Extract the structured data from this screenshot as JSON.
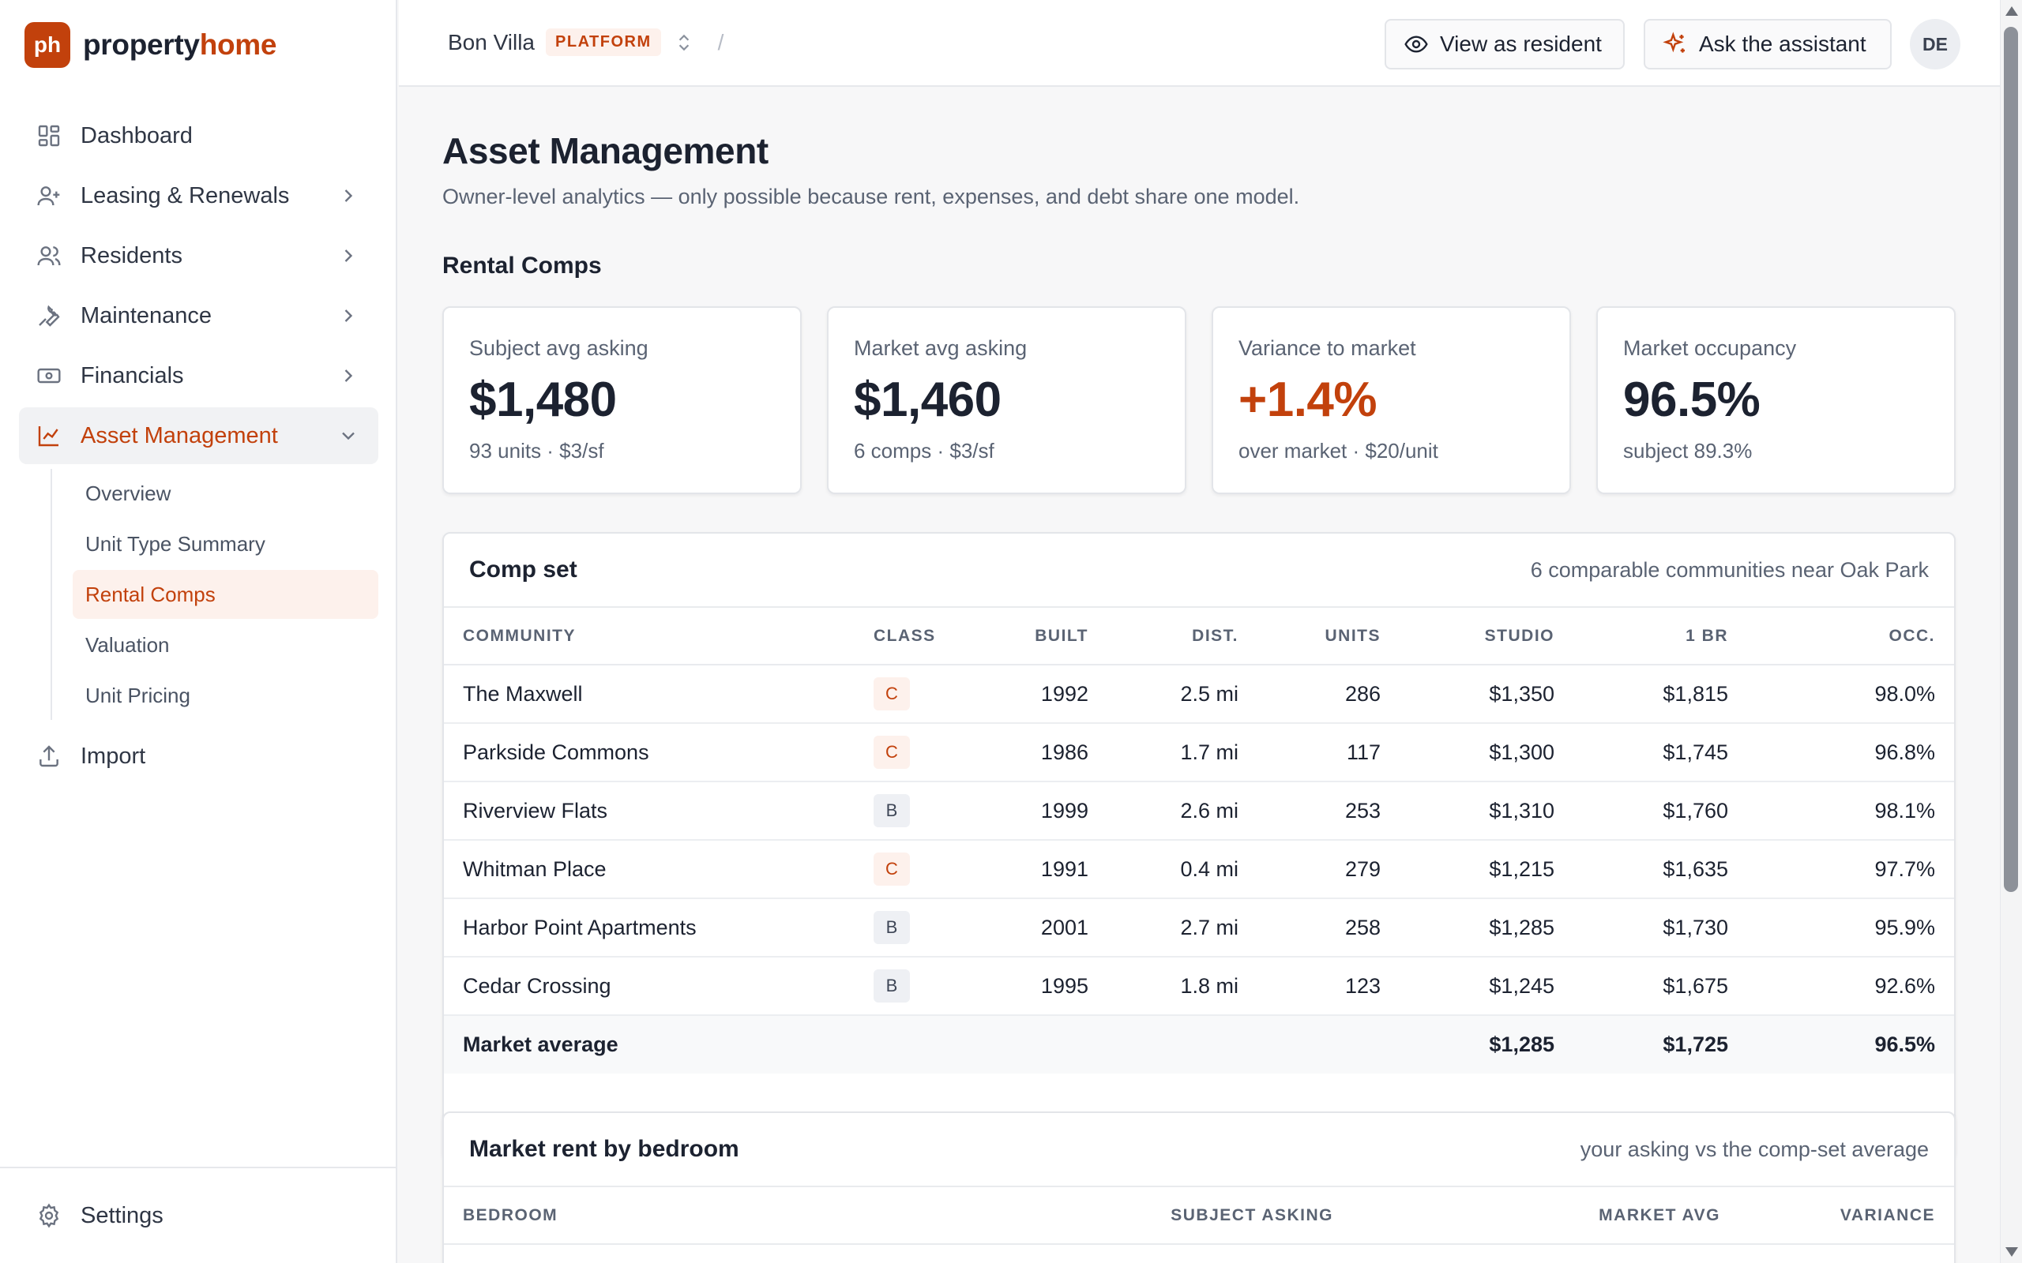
{
  "brand": {
    "logo_text": "ph",
    "name_part1": "property",
    "name_part2": "home",
    "brand_color": "#c2410c"
  },
  "sidebar": {
    "items": [
      {
        "label": "Dashboard",
        "icon": "dashboard-icon"
      },
      {
        "label": "Leasing & Renewals",
        "icon": "user-plus-icon"
      },
      {
        "label": "Residents",
        "icon": "users-icon"
      },
      {
        "label": "Maintenance",
        "icon": "wrench-icon"
      },
      {
        "label": "Financials",
        "icon": "banknote-icon"
      },
      {
        "label": "Asset Management",
        "icon": "chart-line-icon",
        "active": true
      }
    ],
    "subitems": [
      {
        "label": "Overview"
      },
      {
        "label": "Unit Type Summary"
      },
      {
        "label": "Rental Comps",
        "active": true
      },
      {
        "label": "Valuation"
      },
      {
        "label": "Unit Pricing"
      }
    ],
    "import_label": "Import",
    "settings_label": "Settings"
  },
  "topbar": {
    "property": "Bon Villa",
    "badge": "PLATFORM",
    "separator": "/",
    "view_as_resident": "View as resident",
    "ask_assistant": "Ask the assistant",
    "avatar_initials": "DE"
  },
  "page": {
    "title": "Asset Management",
    "subtitle": "Owner-level analytics — only possible because rent, expenses, and debt share one model.",
    "section": "Rental Comps"
  },
  "kpis": [
    {
      "label": "Subject avg asking",
      "value": "$1,480",
      "sub": "93 units · $3/sf"
    },
    {
      "label": "Market avg asking",
      "value": "$1,460",
      "sub": "6 comps · $3/sf"
    },
    {
      "label": "Variance to market",
      "value": "+1.4%",
      "sub": "over market · $20/unit",
      "highlight": true
    },
    {
      "label": "Market occupancy",
      "value": "96.5%",
      "sub": "subject 89.3%"
    }
  ],
  "comp_set": {
    "title": "Comp set",
    "note": "6 comparable communities near Oak Park",
    "columns": [
      "COMMUNITY",
      "CLASS",
      "BUILT",
      "DIST.",
      "UNITS",
      "STUDIO",
      "1 BR",
      "OCC."
    ],
    "rows": [
      [
        "The Maxwell",
        "C",
        "1992",
        "2.5 mi",
        "286",
        "$1,350",
        "$1,815",
        "98.0%"
      ],
      [
        "Parkside Commons",
        "C",
        "1986",
        "1.7 mi",
        "117",
        "$1,300",
        "$1,745",
        "96.8%"
      ],
      [
        "Riverview Flats",
        "B",
        "1999",
        "2.6 mi",
        "253",
        "$1,310",
        "$1,760",
        "98.1%"
      ],
      [
        "Whitman Place",
        "C",
        "1991",
        "0.4 mi",
        "279",
        "$1,215",
        "$1,635",
        "97.7%"
      ],
      [
        "Harbor Point Apartments",
        "B",
        "2001",
        "2.7 mi",
        "258",
        "$1,285",
        "$1,730",
        "95.9%"
      ],
      [
        "Cedar Crossing",
        "B",
        "1995",
        "1.8 mi",
        "123",
        "$1,245",
        "$1,675",
        "92.6%"
      ]
    ],
    "average": [
      "Market average",
      "",
      "",
      "",
      "",
      "$1,285",
      "$1,725",
      "96.5%"
    ]
  },
  "bedroom": {
    "title": "Market rent by bedroom",
    "note": "your asking vs the comp-set average",
    "columns": [
      "BEDROOM",
      "SUBJECT ASKING",
      "MARKET AVG",
      "VARIANCE"
    ]
  }
}
